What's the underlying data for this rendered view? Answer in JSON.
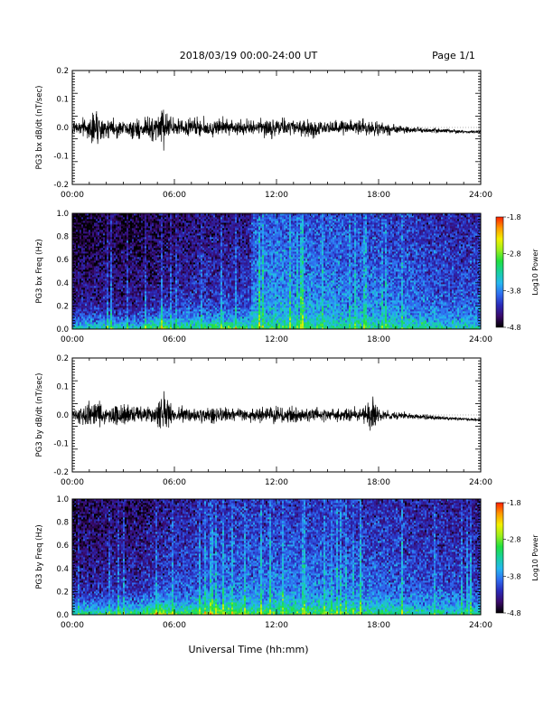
{
  "header": {
    "title": "2018/03/19  00:00-24:00 UT",
    "page": "Page 1/1"
  },
  "footer": {
    "xlabel": "Universal Time (hh:mm)"
  },
  "colorbar": {
    "label": "Log10 Power",
    "ticks": [
      "-1.8",
      "-2.8",
      "-3.8",
      "-4.8"
    ],
    "range": [
      -4.8,
      -1.8
    ],
    "colors": [
      "#000000",
      "#3a0a6a",
      "#2a2ab8",
      "#2f6cf0",
      "#25b6f0",
      "#18d0a0",
      "#20e040",
      "#9cef1c",
      "#f2f000",
      "#ff9a00",
      "#ff2000"
    ]
  },
  "chart_data": [
    {
      "type": "line",
      "title": "",
      "ylabel": "PG3 bx dB/dt (nT/sec)",
      "xlabel": "",
      "xlim": [
        "00:00",
        "24:00"
      ],
      "ylim": [
        -0.2,
        0.2
      ],
      "xticks": [
        "00:00",
        "06:00",
        "12:00",
        "18:00",
        "24:00"
      ],
      "yticks": [
        "0.2",
        "0.1",
        "0.0",
        "-0.1",
        "-0.2"
      ],
      "series": [
        {
          "x_hours": [
            0,
            1,
            1.2,
            2,
            3,
            4,
            5,
            5.3,
            6,
            7,
            8,
            9,
            10,
            11,
            12,
            13,
            14,
            15,
            16,
            17,
            18,
            19,
            20,
            21,
            22,
            23,
            24
          ],
          "amplitude": [
            0.025,
            0.05,
            0.11,
            0.045,
            0.045,
            0.05,
            0.07,
            0.09,
            0.045,
            0.045,
            0.04,
            0.04,
            0.035,
            0.04,
            0.05,
            0.045,
            0.045,
            0.04,
            0.035,
            0.04,
            0.035,
            0.025,
            0.015,
            0.012,
            0.01,
            0.007,
            0.006
          ],
          "offset": [
            0,
            0,
            0,
            0,
            -0.005,
            -0.005,
            -0.005,
            0,
            0,
            0,
            -0.003,
            0,
            0,
            0,
            0,
            0,
            -0.003,
            0,
            0,
            0,
            -0.005,
            -0.005,
            -0.008,
            -0.01,
            -0.012,
            -0.015,
            -0.015
          ]
        }
      ]
    },
    {
      "type": "heatmap",
      "title": "",
      "ylabel": "PG3 bx Freq (Hz)",
      "xlabel": "",
      "xlim": [
        "00:00",
        "24:00"
      ],
      "ylim": [
        0.0,
        1.0
      ],
      "xticks": [
        "00:00",
        "06:00",
        "12:00",
        "18:00",
        "24:00"
      ],
      "yticks": [
        "1.0",
        "0.8",
        "0.6",
        "0.4",
        "0.2",
        "0.0"
      ],
      "background_log_power": {
        "x_hours": [
          0,
          2,
          4,
          6,
          8,
          10.4,
          10.6,
          12,
          14,
          16,
          18,
          20,
          22,
          24
        ],
        "level": [
          -4.4,
          -4.3,
          -4.35,
          -4.2,
          -4.1,
          -4.1,
          -3.7,
          -3.65,
          -3.7,
          -3.75,
          -3.8,
          -3.85,
          -3.95,
          -3.95
        ]
      },
      "low_freq_enhancement": {
        "x_hours": [
          0,
          4,
          5.2,
          6,
          8,
          9,
          10,
          12,
          14,
          16,
          18,
          20,
          22,
          24
        ],
        "log_power_near_0hz": [
          -3.2,
          -3.2,
          -2.5,
          -3.0,
          -2.9,
          -2.8,
          -2.9,
          -3.0,
          -3.0,
          -3.1,
          -3.1,
          -3.1,
          -3.2,
          -3.3
        ]
      }
    },
    {
      "type": "line",
      "title": "",
      "ylabel": "PG3 by dB/dt (nT/sec)",
      "xlabel": "",
      "xlim": [
        "00:00",
        "24:00"
      ],
      "ylim": [
        -0.2,
        0.2
      ],
      "xticks": [
        "00:00",
        "06:00",
        "12:00",
        "18:00",
        "24:00"
      ],
      "yticks": [
        "0.2",
        "0.1",
        "0.0",
        "-0.1",
        "-0.2"
      ],
      "series": [
        {
          "x_hours": [
            0,
            1,
            1.5,
            2,
            3,
            4,
            5,
            5.2,
            6,
            7,
            8,
            9,
            10,
            11,
            12,
            13,
            14,
            15,
            16,
            17,
            17.6,
            18,
            19,
            20,
            21,
            22,
            23,
            24
          ],
          "amplitude": [
            0.03,
            0.07,
            0.08,
            0.05,
            0.045,
            0.04,
            0.05,
            0.12,
            0.04,
            0.035,
            0.035,
            0.035,
            0.03,
            0.035,
            0.04,
            0.04,
            0.035,
            0.035,
            0.03,
            0.035,
            0.1,
            0.03,
            0.02,
            0.015,
            0.012,
            0.01,
            0.007,
            0.006
          ],
          "offset": [
            0,
            0,
            0,
            0,
            0,
            0,
            0,
            0,
            0,
            0,
            0,
            0,
            0,
            0,
            0,
            0,
            0,
            0,
            0,
            0,
            0,
            0,
            -0.003,
            -0.005,
            -0.008,
            -0.012,
            -0.015,
            -0.018
          ]
        }
      ]
    },
    {
      "type": "heatmap",
      "title": "",
      "ylabel": "PG3 by Freq (Hz)",
      "xlabel": "",
      "xlim": [
        "00:00",
        "24:00"
      ],
      "ylim": [
        0.0,
        1.0
      ],
      "xticks": [
        "00:00",
        "06:00",
        "12:00",
        "18:00",
        "24:00"
      ],
      "yticks": [
        "1.0",
        "0.8",
        "0.6",
        "0.4",
        "0.2",
        "0.0"
      ],
      "background_log_power": {
        "x_hours": [
          0,
          2,
          4,
          6,
          8,
          10,
          12,
          14,
          16,
          18,
          20,
          22,
          24
        ],
        "level": [
          -4.3,
          -4.2,
          -4.2,
          -4.0,
          -3.9,
          -3.85,
          -3.8,
          -3.8,
          -3.85,
          -3.9,
          -3.95,
          -4.0,
          -4.05
        ]
      },
      "low_freq_enhancement": {
        "x_hours": [
          0,
          4,
          5.2,
          6,
          8,
          9,
          10,
          12,
          14,
          16,
          18,
          20,
          22,
          24
        ],
        "log_power_near_0hz": [
          -3.0,
          -3.0,
          -2.3,
          -2.9,
          -2.7,
          -2.6,
          -2.8,
          -2.9,
          -2.8,
          -3.0,
          -3.0,
          -3.1,
          -3.1,
          -3.2
        ]
      }
    }
  ]
}
